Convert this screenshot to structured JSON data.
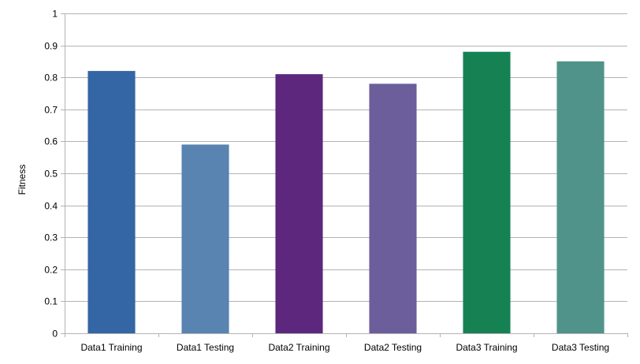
{
  "chart_data": {
    "type": "bar",
    "title": "",
    "xlabel": "",
    "ylabel": "Fitness",
    "ylim": [
      0,
      1
    ],
    "yticks": [
      "0",
      "0.1",
      "0.2",
      "0.3",
      "0.4",
      "0.5",
      "0.6",
      "0.7",
      "0.8",
      "0.9",
      "1"
    ],
    "grid": true,
    "categories": [
      "Data1 Training",
      "Data1 Testing",
      "Data2 Training",
      "Data2 Testing",
      "Data3 Training",
      "Data3 Testing"
    ],
    "values": [
      0.82,
      0.59,
      0.81,
      0.78,
      0.88,
      0.85
    ],
    "colors": [
      "#3465a4",
      "#5983b0",
      "#5c277d",
      "#6b5e9b",
      "#168253",
      "#50938a"
    ]
  }
}
